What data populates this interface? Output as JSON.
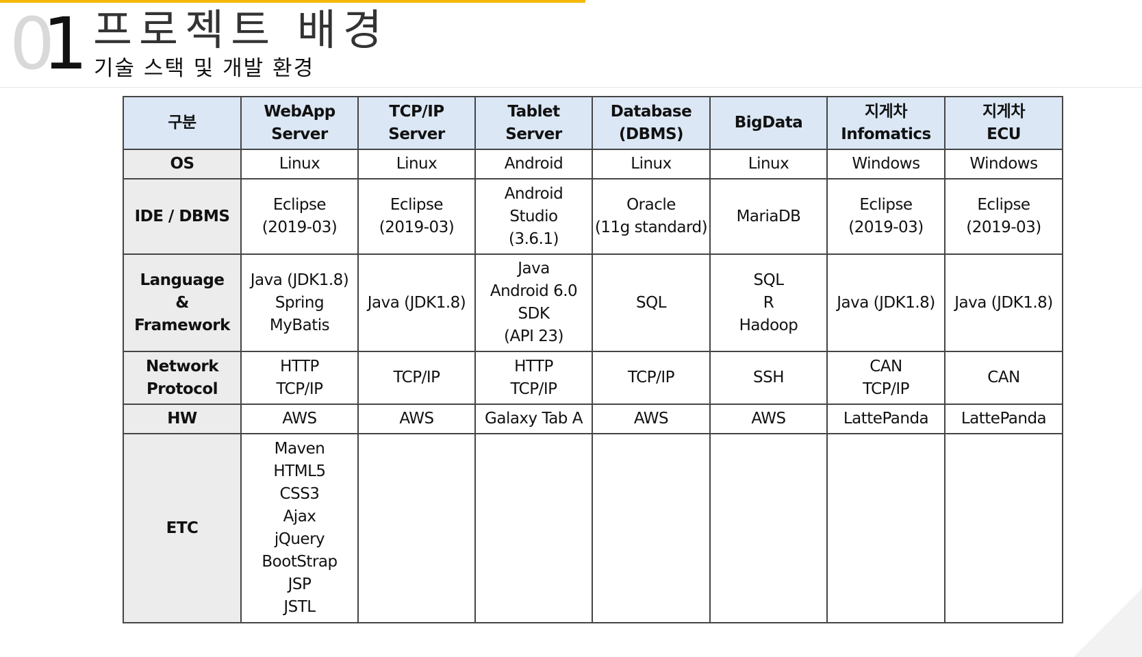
{
  "slide": {
    "section_number_first": "0",
    "section_number_second": "1",
    "title": "프로젝트 배경",
    "subtitle": "기술 스택 및 개발 환경",
    "accent_color": "#f5b800",
    "header_fill_color": "#dbe7f5",
    "row_header_fill_color": "#ececec"
  },
  "table": {
    "corner_header": "구분",
    "columns": [
      "WebApp\nServer",
      "TCP/IP\nServer",
      "Tablet\nServer",
      "Database\n(DBMS)",
      "BigData",
      "지게차\nInfomatics",
      "지게차\nECU"
    ],
    "rows": [
      {
        "label": "OS",
        "cells": [
          "Linux",
          "Linux",
          "Android",
          "Linux",
          "Linux",
          "Windows",
          "Windows"
        ]
      },
      {
        "label": "IDE / DBMS",
        "cells": [
          "Eclipse\n(2019-03)",
          "Eclipse\n(2019-03)",
          "Android\nStudio\n(3.6.1)",
          "Oracle\n(11g standard)",
          "MariaDB",
          "Eclipse\n(2019-03)",
          "Eclipse\n(2019-03)"
        ]
      },
      {
        "label": "Language\n&\nFramework",
        "cells": [
          "Java (JDK1.8)\nSpring\nMyBatis",
          "Java (JDK1.8)",
          "Java\nAndroid 6.0\nSDK\n(API 23)",
          "SQL",
          "SQL\nR\nHadoop",
          "Java (JDK1.8)",
          "Java (JDK1.8)"
        ]
      },
      {
        "label": "Network\nProtocol",
        "cells": [
          "HTTP\nTCP/IP",
          "TCP/IP",
          "HTTP\nTCP/IP",
          "TCP/IP",
          "SSH",
          "CAN\nTCP/IP",
          "CAN"
        ]
      },
      {
        "label": "HW",
        "cells": [
          "AWS",
          "AWS",
          "Galaxy Tab A",
          "AWS",
          "AWS",
          "LattePanda",
          "LattePanda"
        ]
      },
      {
        "label": "ETC",
        "cells": [
          "Maven\nHTML5\nCSS3\nAjax\njQuery\nBootStrap\nJSP\nJSTL",
          "",
          "",
          "",
          "",
          "",
          ""
        ]
      }
    ]
  }
}
